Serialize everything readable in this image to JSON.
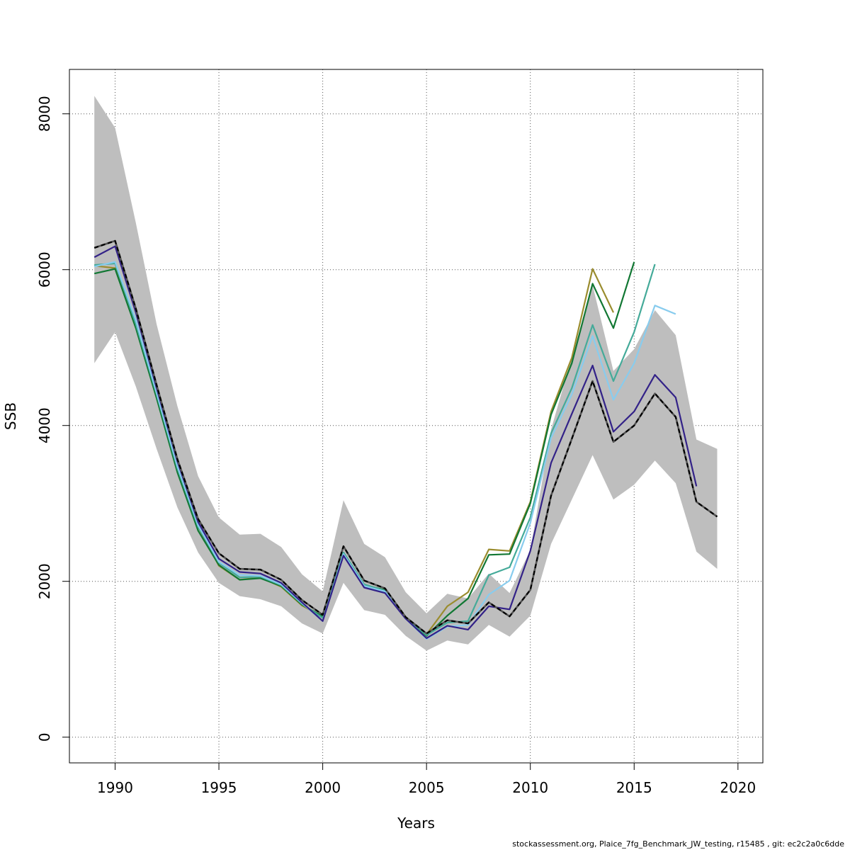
{
  "footer_text": "stockassessment.org, Plaice_7fg_Benchmark_JW_testing, r15485 , git: ec2c2a0c6dde",
  "chart_data": {
    "type": "line",
    "title": "",
    "xlabel": "Years",
    "ylabel": "SSB",
    "xlim": [
      1987.8,
      2021.2
    ],
    "ylim": [
      -330,
      8570
    ],
    "x_ticks": [
      1990,
      1995,
      2000,
      2005,
      2010,
      2015,
      2020
    ],
    "y_ticks": [
      0,
      2000,
      4000,
      6000,
      8000
    ],
    "grid": true,
    "legend": "none",
    "band": {
      "color": "#bebebe",
      "x": [
        1989,
        1990,
        1991,
        1992,
        1993,
        1994,
        1995,
        1996,
        1997,
        1998,
        1999,
        2000,
        2001,
        2002,
        2003,
        2004,
        2005,
        2006,
        2007,
        2008,
        2009,
        2010,
        2011,
        2012,
        2013,
        2014,
        2015,
        2016,
        2017,
        2018,
        2019
      ],
      "upper": [
        8230,
        7820,
        6600,
        5300,
        4250,
        3350,
        2820,
        2600,
        2610,
        2440,
        2090,
        1870,
        3040,
        2480,
        2310,
        1860,
        1590,
        1840,
        1780,
        2100,
        1850,
        2400,
        3950,
        4880,
        5800,
        4700,
        4980,
        5480,
        5160,
        3820,
        3700
      ],
      "lower": [
        4800,
        5200,
        4500,
        3700,
        2950,
        2370,
        1980,
        1810,
        1770,
        1680,
        1460,
        1330,
        1980,
        1630,
        1570,
        1300,
        1110,
        1240,
        1190,
        1440,
        1290,
        1560,
        2480,
        3050,
        3620,
        3050,
        3240,
        3550,
        3260,
        2380,
        2160
      ]
    },
    "series": [
      {
        "color": "#9a8c2e",
        "dash": false,
        "x": [
          1989,
          1990,
          1991,
          1992,
          1993,
          1994,
          1995,
          1996,
          1997,
          1998,
          1999,
          2000,
          2001,
          2002,
          2003,
          2004,
          2005,
          2006,
          2007,
          2008,
          2009,
          2010,
          2011,
          2012,
          2013,
          2014
        ],
        "values": [
          6050,
          6020,
          5300,
          4400,
          3450,
          2700,
          2200,
          2020,
          2050,
          1930,
          1690,
          1540,
          2360,
          1960,
          1880,
          1530,
          1320,
          1680,
          1860,
          2410,
          2390,
          3020,
          4180,
          4870,
          6010,
          5450
        ]
      },
      {
        "color": "#117733",
        "dash": false,
        "x": [
          1989,
          1990,
          1991,
          1992,
          1993,
          1994,
          1995,
          1996,
          1997,
          1998,
          1999,
          2000,
          2001,
          2002,
          2003,
          2004,
          2005,
          2006,
          2007,
          2008,
          2009,
          2010,
          2011,
          2012,
          2013,
          2014,
          2015
        ],
        "values": [
          5950,
          6010,
          5250,
          4350,
          3400,
          2650,
          2210,
          2020,
          2040,
          1940,
          1700,
          1550,
          2370,
          1950,
          1890,
          1530,
          1300,
          1560,
          1780,
          2340,
          2350,
          3000,
          4140,
          4800,
          5820,
          5250,
          6100
        ]
      },
      {
        "color": "#44aa99",
        "dash": false,
        "x": [
          1989,
          1990,
          1991,
          1992,
          1993,
          1994,
          1995,
          1996,
          1997,
          1998,
          1999,
          2000,
          2001,
          2002,
          2003,
          2004,
          2005,
          2006,
          2007,
          2008,
          2009,
          2010,
          2011,
          2012,
          2013,
          2014,
          2015,
          2016
        ],
        "values": [
          6060,
          6080,
          5300,
          4400,
          3450,
          2700,
          2240,
          2050,
          2060,
          1950,
          1710,
          1530,
          2370,
          1960,
          1880,
          1530,
          1310,
          1470,
          1490,
          2080,
          2180,
          2820,
          3900,
          4480,
          5290,
          4570,
          5200,
          6070
        ]
      },
      {
        "color": "#88ccee",
        "dash": false,
        "x": [
          1989,
          1990,
          1991,
          1992,
          1993,
          1994,
          1995,
          1996,
          1997,
          1998,
          1999,
          2000,
          2001,
          2002,
          2003,
          2004,
          2005,
          2006,
          2007,
          2008,
          2009,
          2010,
          2011,
          2012,
          2013,
          2014,
          2015,
          2016,
          2017
        ],
        "values": [
          6040,
          6100,
          5350,
          4420,
          3480,
          2720,
          2250,
          2080,
          2070,
          1960,
          1720,
          1490,
          2350,
          1940,
          1870,
          1520,
          1260,
          1420,
          1440,
          1830,
          2010,
          2750,
          3840,
          4400,
          5150,
          4330,
          4800,
          5540,
          5430
        ]
      },
      {
        "color": "#332288",
        "dash": false,
        "x": [
          1989,
          1990,
          1991,
          1992,
          1993,
          1994,
          1995,
          1996,
          1997,
          1998,
          1999,
          2000,
          2001,
          2002,
          2003,
          2004,
          2005,
          2006,
          2007,
          2008,
          2009,
          2010,
          2011,
          2012,
          2013,
          2014,
          2015,
          2016,
          2017,
          2018
        ],
        "values": [
          6160,
          6300,
          5450,
          4480,
          3540,
          2760,
          2290,
          2120,
          2100,
          1980,
          1730,
          1490,
          2330,
          1920,
          1850,
          1520,
          1270,
          1430,
          1380,
          1680,
          1640,
          2390,
          3520,
          4150,
          4770,
          3920,
          4180,
          4650,
          4360,
          3220
        ]
      },
      {
        "color": "#000000",
        "dash": true,
        "x": [
          1989,
          1990,
          1991,
          1992,
          1993,
          1994,
          1995,
          1996,
          1997,
          1998,
          1999,
          2000,
          2001,
          2002,
          2003,
          2004,
          2005,
          2006,
          2007,
          2008,
          2009,
          2010,
          2011,
          2012,
          2013,
          2014,
          2015,
          2016,
          2017,
          2018,
          2019
        ],
        "values": [
          6280,
          6370,
          5500,
          4520,
          3570,
          2800,
          2360,
          2160,
          2150,
          2020,
          1760,
          1570,
          2450,
          2010,
          1910,
          1540,
          1330,
          1500,
          1460,
          1730,
          1550,
          1890,
          3100,
          3830,
          4570,
          3790,
          4000,
          4410,
          4110,
          3020,
          2830
        ]
      }
    ]
  }
}
